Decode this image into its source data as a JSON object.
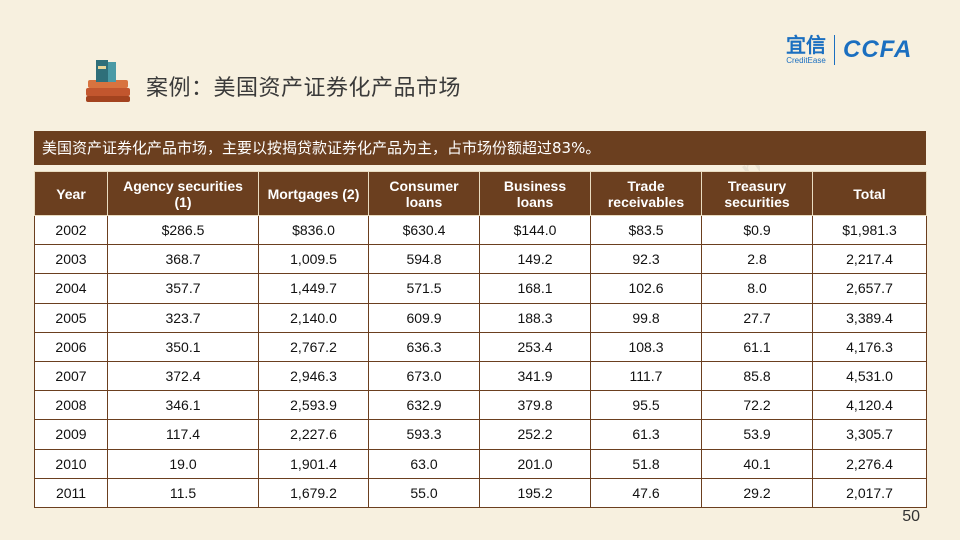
{
  "header": {
    "title": "案例：美国资产证券化产品市场",
    "logo_cn": "宜信",
    "logo_en": "CreditEase",
    "logo_ccfa": "CCFA"
  },
  "banner": {
    "text": "美国资产证券化产品市场，主要以按揭贷款证券化产品为主，占市场份额超过83%。"
  },
  "table": {
    "columns": [
      [
        "Year",
        ""
      ],
      [
        "Agency securities",
        "(1)"
      ],
      [
        "Mortgages (2)",
        ""
      ],
      [
        "Consumer",
        "loans"
      ],
      [
        "Business",
        "loans"
      ],
      [
        "Trade",
        "receivables"
      ],
      [
        "Treasury",
        "securities"
      ],
      [
        "Total",
        ""
      ]
    ],
    "rows": [
      [
        "2002",
        "$286.5",
        "$836.0",
        "$630.4",
        "$144.0",
        "$83.5",
        "$0.9",
        "$1,981.3"
      ],
      [
        "2003",
        "368.7",
        "1,009.5",
        "594.8",
        "149.2",
        "92.3",
        "2.8",
        "2,217.4"
      ],
      [
        "2004",
        "357.7",
        "1,449.7",
        "571.5",
        "168.1",
        "102.6",
        "8.0",
        "2,657.7"
      ],
      [
        "2005",
        "323.7",
        "2,140.0",
        "609.9",
        "188.3",
        "99.8",
        "27.7",
        "3,389.4"
      ],
      [
        "2006",
        "350.1",
        "2,767.2",
        "636.3",
        "253.4",
        "108.3",
        "61.1",
        "4,176.3"
      ],
      [
        "2007",
        "372.4",
        "2,946.3",
        "673.0",
        "341.9",
        "111.7",
        "85.8",
        "4,531.0"
      ],
      [
        "2008",
        "346.1",
        "2,593.9",
        "632.9",
        "379.8",
        "95.5",
        "72.2",
        "4,120.4"
      ],
      [
        "2009",
        "117.4",
        "2,227.6",
        "593.3",
        "252.2",
        "61.3",
        "53.9",
        "3,305.7"
      ],
      [
        "2010",
        "19.0",
        "1,901.4",
        "63.0",
        "201.0",
        "51.8",
        "40.1",
        "2,276.4"
      ],
      [
        "2011",
        "11.5",
        "1,679.2",
        "55.0",
        "195.2",
        "47.6",
        "29.2",
        "2,017.7"
      ]
    ]
  },
  "watermark": {
    "text": "xinghuo.yixin.com"
  },
  "footer": {
    "page_number": "50"
  },
  "colors": {
    "background": "#f7f0df",
    "brown": "#6b3f1f",
    "brand_blue": "#1b6fc0"
  },
  "icons": {
    "title_icon": "books-icon"
  }
}
